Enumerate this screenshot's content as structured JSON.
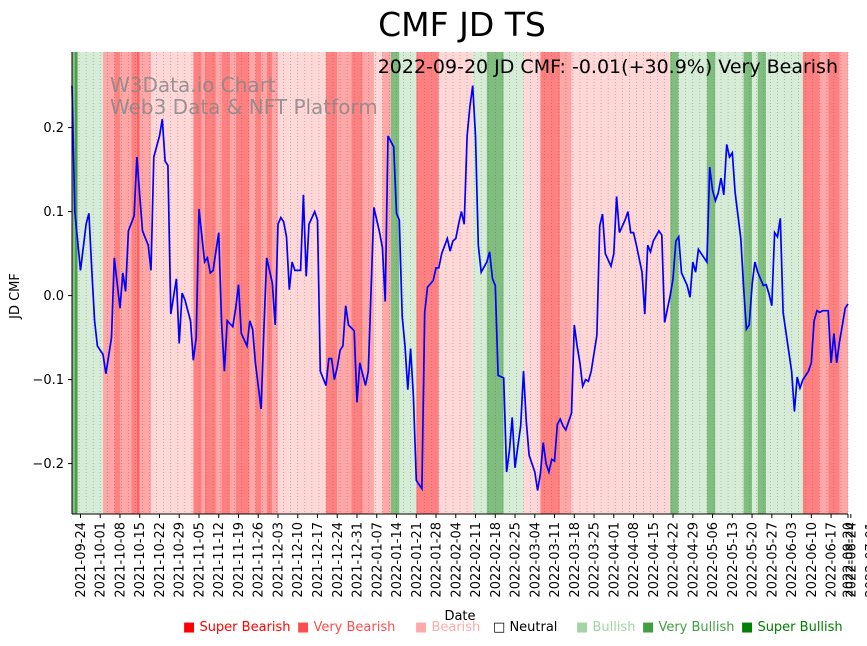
{
  "chart_data": {
    "type": "line",
    "title": "CMF JD TS",
    "subtitle": "2022-09-20 JD CMF: -0.01(+30.9%) Very Bearish",
    "xlabel": "Date",
    "ylabel": "JD CMF",
    "ylim": [
      -0.26,
      0.29
    ],
    "yticks": [
      0.2,
      0.1,
      0.0,
      -0.1,
      -0.2
    ],
    "ytick_labels": [
      "0.2",
      "0.1",
      "0.0",
      "−0.1",
      "−0.2"
    ],
    "x_range": [
      "2021-09-21",
      "2022-09-20"
    ],
    "xtick_labels": [
      "2021-09-24",
      "2021-10-01",
      "2021-10-08",
      "2021-10-15",
      "2021-10-22",
      "2021-10-29",
      "2021-11-05",
      "2021-11-12",
      "2021-11-19",
      "2021-11-26",
      "2021-12-03",
      "2021-12-10",
      "2021-12-17",
      "2021-12-24",
      "2021-12-31",
      "2022-01-07",
      "2022-01-14",
      "2022-01-21",
      "2022-01-28",
      "2022-02-04",
      "2022-02-11",
      "2022-02-18",
      "2022-02-25",
      "2022-03-04",
      "2022-03-11",
      "2022-03-18",
      "2022-03-25",
      "2022-04-01",
      "2022-04-08",
      "2022-04-15",
      "2022-04-22",
      "2022-04-29",
      "2022-05-06",
      "2022-05-13",
      "2022-05-20",
      "2022-05-27",
      "2022-06-03",
      "2022-06-10",
      "2022-06-17",
      "2022-06-24",
      "2022-07-01",
      "2022-07-08",
      "2022-07-15",
      "2022-07-22",
      "2022-07-29",
      "2022-08-05",
      "2022-08-12",
      "2022-08-19",
      "2022-08-26",
      "2022-09-02",
      "2022-09-09",
      "2022-09-16",
      "2022-09-20"
    ],
    "watermark": [
      "W3Data.io Chart",
      "Web3 Data & NFT Platform"
    ],
    "series": [
      {
        "name": "JD CMF",
        "color": "#0000ff"
      }
    ],
    "points": [
      [
        0,
        0.25
      ],
      [
        1,
        0.1
      ],
      [
        3,
        0.03
      ],
      [
        5,
        0.085
      ],
      [
        6,
        0.098
      ],
      [
        7,
        0.03
      ],
      [
        8,
        -0.03
      ],
      [
        9,
        -0.06
      ],
      [
        11,
        -0.07
      ],
      [
        12,
        -0.093
      ],
      [
        14,
        -0.05
      ],
      [
        15,
        0.045
      ],
      [
        17,
        -0.015
      ],
      [
        18,
        0.027
      ],
      [
        19,
        0.005
      ],
      [
        20,
        0.077
      ],
      [
        22,
        0.095
      ],
      [
        23,
        0.165
      ],
      [
        24,
        0.12
      ],
      [
        25,
        0.077
      ],
      [
        27,
        0.06
      ],
      [
        28,
        0.03
      ],
      [
        29,
        0.165
      ],
      [
        31,
        0.19
      ],
      [
        32,
        0.21
      ],
      [
        33,
        0.16
      ],
      [
        34,
        0.155
      ],
      [
        35,
        -0.022
      ],
      [
        37,
        0.02
      ],
      [
        38,
        -0.057
      ],
      [
        39,
        0.003
      ],
      [
        40,
        -0.005
      ],
      [
        42,
        -0.03
      ],
      [
        43,
        -0.077
      ],
      [
        44,
        -0.05
      ],
      [
        45,
        0.103
      ],
      [
        47,
        0.04
      ],
      [
        48,
        0.045
      ],
      [
        49,
        0.027
      ],
      [
        50,
        0.03
      ],
      [
        52,
        0.075
      ],
      [
        53,
        -0.033
      ],
      [
        54,
        -0.09
      ],
      [
        55,
        -0.03
      ],
      [
        57,
        -0.037
      ],
      [
        58,
        -0.015
      ],
      [
        59,
        0.013
      ],
      [
        60,
        -0.045
      ],
      [
        62,
        -0.06
      ],
      [
        63,
        -0.03
      ],
      [
        64,
        -0.04
      ],
      [
        65,
        -0.08
      ],
      [
        67,
        -0.135
      ],
      [
        68,
        -0.04
      ],
      [
        69,
        0.045
      ],
      [
        71,
        0.015
      ],
      [
        72,
        -0.035
      ],
      [
        73,
        0.085
      ],
      [
        74,
        0.093
      ],
      [
        75,
        0.088
      ],
      [
        76,
        0.07
      ],
      [
        77,
        0.007
      ],
      [
        78,
        0.04
      ],
      [
        79,
        0.03
      ],
      [
        81,
        0.03
      ],
      [
        82,
        0.12
      ],
      [
        83,
        0.023
      ],
      [
        84,
        0.085
      ],
      [
        86,
        0.1
      ],
      [
        87,
        0.09
      ],
      [
        88,
        -0.09
      ],
      [
        90,
        -0.107
      ],
      [
        91,
        -0.075
      ],
      [
        92,
        -0.075
      ],
      [
        93,
        -0.1
      ],
      [
        94,
        -0.085
      ],
      [
        95,
        -0.065
      ],
      [
        96,
        -0.06
      ],
      [
        97,
        -0.012
      ],
      [
        98,
        -0.035
      ],
      [
        100,
        -0.042
      ],
      [
        101,
        -0.127
      ],
      [
        102,
        -0.08
      ],
      [
        104,
        -0.107
      ],
      [
        105,
        -0.09
      ],
      [
        107,
        0.105
      ],
      [
        109,
        0.075
      ],
      [
        110,
        0.057
      ],
      [
        111,
        -0.007
      ],
      [
        112,
        0.19
      ],
      [
        114,
        0.177
      ],
      [
        115,
        0.098
      ],
      [
        116,
        0.09
      ],
      [
        117,
        -0.025
      ],
      [
        118,
        -0.06
      ],
      [
        119,
        -0.112
      ],
      [
        120,
        -0.063
      ],
      [
        121,
        -0.12
      ],
      [
        122,
        -0.22
      ],
      [
        124,
        -0.23
      ],
      [
        125,
        -0.02
      ],
      [
        126,
        0.01
      ],
      [
        128,
        0.018
      ],
      [
        129,
        0.033
      ],
      [
        130,
        0.033
      ],
      [
        131,
        0.05
      ],
      [
        133,
        0.068
      ],
      [
        134,
        0.053
      ],
      [
        135,
        0.065
      ],
      [
        136,
        0.068
      ],
      [
        137,
        0.085
      ],
      [
        138,
        0.1
      ],
      [
        139,
        0.085
      ],
      [
        140,
        0.19
      ],
      [
        141,
        0.225
      ],
      [
        142,
        0.25
      ],
      [
        143,
        0.19
      ],
      [
        144,
        0.06
      ],
      [
        145,
        0.028
      ],
      [
        147,
        0.04
      ],
      [
        148,
        0.052
      ],
      [
        149,
        0.02
      ],
      [
        150,
        0.012
      ],
      [
        151,
        -0.095
      ],
      [
        153,
        -0.098
      ],
      [
        154,
        -0.21
      ],
      [
        155,
        -0.185
      ],
      [
        156,
        -0.145
      ],
      [
        157,
        -0.205
      ],
      [
        158,
        -0.18
      ],
      [
        159,
        -0.155
      ],
      [
        160,
        -0.09
      ],
      [
        161,
        -0.15
      ],
      [
        162,
        -0.19
      ],
      [
        164,
        -0.21
      ],
      [
        165,
        -0.232
      ],
      [
        166,
        -0.212
      ],
      [
        167,
        -0.175
      ],
      [
        168,
        -0.2
      ],
      [
        169,
        -0.21
      ],
      [
        170,
        -0.195
      ],
      [
        171,
        -0.197
      ],
      [
        172,
        -0.153
      ],
      [
        173,
        -0.147
      ],
      [
        174,
        -0.155
      ],
      [
        175,
        -0.16
      ],
      [
        176,
        -0.15
      ],
      [
        177,
        -0.14
      ],
      [
        178,
        -0.035
      ],
      [
        179,
        -0.06
      ],
      [
        180,
        -0.08
      ],
      [
        181,
        -0.108
      ],
      [
        182,
        -0.1
      ],
      [
        183,
        -0.102
      ],
      [
        184,
        -0.09
      ],
      [
        186,
        -0.047
      ],
      [
        187,
        0.083
      ],
      [
        188,
        0.097
      ],
      [
        189,
        0.05
      ],
      [
        191,
        0.035
      ],
      [
        192,
        0.05
      ],
      [
        193,
        0.118
      ],
      [
        194,
        0.075
      ],
      [
        196,
        0.09
      ],
      [
        197,
        0.1
      ],
      [
        198,
        0.075
      ],
      [
        199,
        0.075
      ],
      [
        200,
        0.06
      ],
      [
        202,
        0.028
      ],
      [
        203,
        -0.022
      ],
      [
        204,
        0.06
      ],
      [
        205,
        0.052
      ],
      [
        206,
        0.065
      ],
      [
        208,
        0.077
      ],
      [
        209,
        0.072
      ],
      [
        210,
        -0.032
      ],
      [
        212,
        0.0
      ],
      [
        213,
        0.02
      ],
      [
        214,
        0.065
      ],
      [
        215,
        0.07
      ],
      [
        216,
        0.027
      ],
      [
        218,
        0.012
      ],
      [
        219,
        -0.002
      ],
      [
        220,
        0.04
      ],
      [
        221,
        0.028
      ],
      [
        222,
        0.055
      ],
      [
        224,
        0.045
      ],
      [
        225,
        0.04
      ],
      [
        226,
        0.153
      ],
      [
        227,
        0.125
      ],
      [
        228,
        0.113
      ],
      [
        229,
        0.122
      ],
      [
        230,
        0.14
      ],
      [
        231,
        0.12
      ],
      [
        232,
        0.18
      ],
      [
        233,
        0.165
      ],
      [
        234,
        0.17
      ],
      [
        235,
        0.123
      ],
      [
        237,
        0.068
      ],
      [
        238,
        0.01
      ],
      [
        239,
        -0.04
      ],
      [
        240,
        -0.035
      ],
      [
        241,
        0.013
      ],
      [
        242,
        0.04
      ],
      [
        243,
        0.028
      ],
      [
        245,
        0.012
      ],
      [
        246,
        0.013
      ],
      [
        247,
        0.002
      ],
      [
        248,
        -0.012
      ],
      [
        249,
        0.075
      ],
      [
        250,
        0.07
      ],
      [
        251,
        0.092
      ],
      [
        252,
        -0.02
      ],
      [
        255,
        -0.09
      ],
      [
        256,
        -0.138
      ],
      [
        257,
        -0.097
      ],
      [
        258,
        -0.11
      ],
      [
        259,
        -0.1
      ],
      [
        261,
        -0.09
      ],
      [
        262,
        -0.08
      ],
      [
        263,
        -0.03
      ],
      [
        264,
        -0.018
      ],
      [
        265,
        -0.02
      ],
      [
        266,
        -0.018
      ],
      [
        268,
        -0.018
      ],
      [
        269,
        -0.08
      ],
      [
        270,
        -0.045
      ],
      [
        271,
        -0.08
      ],
      [
        272,
        -0.055
      ],
      [
        273,
        -0.035
      ],
      [
        274,
        -0.015
      ],
      [
        275,
        -0.01
      ]
    ],
    "signal_bands": [
      [
        0,
        1,
        "very_bullish"
      ],
      [
        1,
        2,
        "super_bullish"
      ],
      [
        2,
        11,
        "bullish"
      ],
      [
        11,
        15,
        "bearish"
      ],
      [
        15,
        17,
        "very_bearish"
      ],
      [
        17,
        21,
        "bearish"
      ],
      [
        21,
        23,
        "very_bearish"
      ],
      [
        23,
        24,
        "super_bearish"
      ],
      [
        24,
        28,
        "bearish"
      ],
      [
        28,
        36,
        "light_bearish"
      ],
      [
        36,
        43,
        "light_bearish_2"
      ],
      [
        43,
        46,
        "very_bearish"
      ],
      [
        46,
        47,
        "bearish"
      ],
      [
        47,
        51,
        "very_bearish"
      ],
      [
        51,
        53,
        "bearish"
      ],
      [
        53,
        56,
        "very_bearish"
      ],
      [
        56,
        58,
        "bearish"
      ],
      [
        58,
        63,
        "very_bearish"
      ],
      [
        63,
        65,
        "bearish"
      ],
      [
        65,
        67,
        "very_bearish"
      ],
      [
        67,
        69,
        "bearish"
      ],
      [
        69,
        71,
        "very_bearish"
      ],
      [
        71,
        73,
        "bearish"
      ],
      [
        73,
        77,
        "light_bearish"
      ],
      [
        77,
        90,
        "light_bearish"
      ],
      [
        90,
        94,
        "very_bearish"
      ],
      [
        94,
        99,
        "bearish"
      ],
      [
        99,
        103,
        "very_bearish"
      ],
      [
        103,
        107,
        "bearish"
      ],
      [
        107,
        110,
        "light_bearish"
      ],
      [
        110,
        113,
        "bearish"
      ],
      [
        113,
        116,
        "very_bullish"
      ],
      [
        116,
        122,
        "bullish"
      ],
      [
        122,
        130,
        "very_bearish"
      ],
      [
        130,
        142,
        "light_bearish"
      ],
      [
        142,
        147,
        "bullish"
      ],
      [
        147,
        153,
        "very_bullish"
      ],
      [
        153,
        160,
        "bullish"
      ],
      [
        160,
        166,
        "light_bearish"
      ],
      [
        166,
        173,
        "very_bearish"
      ],
      [
        173,
        177,
        "bearish"
      ],
      [
        177,
        185,
        "light_bearish"
      ],
      [
        185,
        197,
        "light_bearish"
      ],
      [
        197,
        212,
        "light_bearish"
      ],
      [
        212,
        215,
        "very_bullish"
      ],
      [
        215,
        218,
        "bullish"
      ],
      [
        218,
        225,
        "bullish"
      ],
      [
        225,
        228,
        "very_bullish"
      ],
      [
        228,
        238,
        "bullish"
      ],
      [
        238,
        241,
        "very_bullish"
      ],
      [
        241,
        243,
        "bullish"
      ],
      [
        243,
        246,
        "very_bullish"
      ],
      [
        246,
        248,
        "bullish"
      ],
      [
        248,
        259,
        "bullish"
      ],
      [
        259,
        265,
        "very_bearish"
      ],
      [
        265,
        268,
        "bearish"
      ],
      [
        268,
        272,
        "very_bearish"
      ],
      [
        272,
        275,
        "bearish"
      ]
    ],
    "band_colors": {
      "super_bullish": "#4d9a4d",
      "very_bullish": "#80be80",
      "bullish": "#d6ecd6",
      "light_bearish": "#ffd7d7",
      "light_bearish_2": "#ffd7d7",
      "bearish": "#ffa6a6",
      "very_bearish": "#ff8080",
      "super_bearish": "#ff6060"
    },
    "legend": [
      {
        "symbol": "■",
        "label": "Super Bearish",
        "color": "#ff0000"
      },
      {
        "symbol": "■",
        "label": "Very Bearish",
        "color": "#ff4d4d"
      },
      {
        "symbol": "■",
        "label": "Bearish",
        "color": "#ffaaaa"
      },
      {
        "symbol": "□",
        "label": "Neutral",
        "color": "#000000"
      },
      {
        "symbol": "■",
        "label": "Bullish",
        "color": "#a3d4a3"
      },
      {
        "symbol": "■",
        "label": "Very Bullish",
        "color": "#40a040"
      },
      {
        "symbol": "■",
        "label": "Super Bullish",
        "color": "#008000"
      }
    ]
  }
}
